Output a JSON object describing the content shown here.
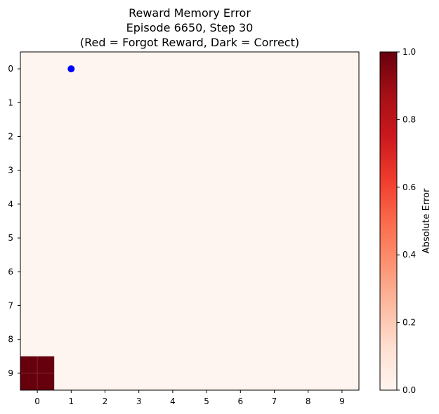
{
  "chart_data": {
    "type": "heatmap",
    "title_lines": [
      "Reward Memory Error",
      "Episode 6650, Step 30",
      "(Red = Forgot Reward, Dark = Correct)"
    ],
    "x_ticks": [
      "0",
      "1",
      "2",
      "3",
      "4",
      "5",
      "6",
      "7",
      "8",
      "9"
    ],
    "y_ticks": [
      "0",
      "1",
      "2",
      "3",
      "4",
      "5",
      "6",
      "7",
      "8",
      "9"
    ],
    "grid_size": [
      10,
      10
    ],
    "high_value_cells": [
      {
        "row": 9,
        "col": 0,
        "value": 1.0
      }
    ],
    "default_value": 0.0,
    "agent_marker": {
      "row": 0,
      "col": 1,
      "color": "#0000ff"
    },
    "colorbar": {
      "label": "Absolute Error",
      "range": [
        0.0,
        1.0
      ],
      "ticks": [
        "0.0",
        "0.2",
        "0.4",
        "0.6",
        "0.8",
        "1.0"
      ],
      "colormap": "Reds",
      "color_low": "#fff5f0",
      "color_high": "#67000d"
    }
  }
}
